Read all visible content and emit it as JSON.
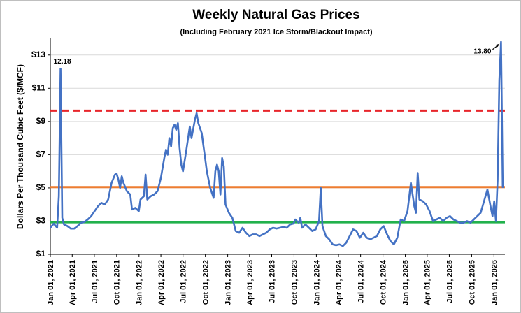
{
  "chart_data": {
    "type": "line",
    "title": "Weekly Natural Gas Prices",
    "subtitle": "(Including February  2021 Ice Storm/Blackout Impact)",
    "y_label": "Dollars Per Thousand Cubic Feet  ($/MCF)",
    "x": [
      "2021-01-01",
      "2021-01-15",
      "2021-01-29",
      "2021-02-05",
      "2021-02-12",
      "2021-02-19",
      "2021-02-26",
      "2021-03-12",
      "2021-03-26",
      "2021-04-09",
      "2021-04-23",
      "2021-05-07",
      "2021-05-21",
      "2021-06-04",
      "2021-06-18",
      "2021-07-02",
      "2021-07-16",
      "2021-07-30",
      "2021-08-13",
      "2021-08-27",
      "2021-09-10",
      "2021-09-24",
      "2021-10-01",
      "2021-10-08",
      "2021-10-15",
      "2021-10-22",
      "2021-10-29",
      "2021-11-12",
      "2021-11-26",
      "2021-12-03",
      "2021-12-17",
      "2021-12-31",
      "2022-01-07",
      "2022-01-21",
      "2022-01-28",
      "2022-02-04",
      "2022-02-18",
      "2022-03-04",
      "2022-03-18",
      "2022-04-01",
      "2022-04-15",
      "2022-04-22",
      "2022-04-29",
      "2022-05-06",
      "2022-05-13",
      "2022-05-20",
      "2022-05-27",
      "2022-06-03",
      "2022-06-10",
      "2022-06-17",
      "2022-06-24",
      "2022-07-01",
      "2022-07-15",
      "2022-07-29",
      "2022-08-05",
      "2022-08-19",
      "2022-08-26",
      "2022-09-02",
      "2022-09-16",
      "2022-09-30",
      "2022-10-07",
      "2022-10-21",
      "2022-11-04",
      "2022-11-11",
      "2022-11-18",
      "2022-11-25",
      "2022-12-02",
      "2022-12-09",
      "2022-12-16",
      "2022-12-23",
      "2023-01-06",
      "2023-01-20",
      "2023-02-03",
      "2023-02-17",
      "2023-03-03",
      "2023-03-17",
      "2023-03-31",
      "2023-04-14",
      "2023-04-28",
      "2023-05-12",
      "2023-05-26",
      "2023-06-09",
      "2023-06-23",
      "2023-07-07",
      "2023-07-21",
      "2023-08-04",
      "2023-08-18",
      "2023-09-01",
      "2023-09-15",
      "2023-09-29",
      "2023-10-06",
      "2023-10-20",
      "2023-10-27",
      "2023-11-03",
      "2023-11-17",
      "2023-12-01",
      "2023-12-15",
      "2023-12-29",
      "2024-01-12",
      "2024-01-19",
      "2024-01-26",
      "2024-02-09",
      "2024-02-23",
      "2024-03-08",
      "2024-03-22",
      "2024-04-05",
      "2024-04-19",
      "2024-05-03",
      "2024-05-17",
      "2024-05-31",
      "2024-06-14",
      "2024-06-28",
      "2024-07-12",
      "2024-07-26",
      "2024-08-09",
      "2024-08-23",
      "2024-09-06",
      "2024-09-20",
      "2024-10-04",
      "2024-10-18",
      "2024-11-01",
      "2024-11-15",
      "2024-11-29",
      "2024-12-13",
      "2024-12-27",
      "2025-01-10",
      "2025-01-24",
      "2025-02-07",
      "2025-02-14",
      "2025-02-21",
      "2025-02-28",
      "2025-03-14",
      "2025-03-28",
      "2025-04-11",
      "2025-04-25",
      "2025-05-09",
      "2025-05-23",
      "2025-06-06",
      "2025-06-20",
      "2025-07-04",
      "2025-07-18",
      "2025-08-01",
      "2025-08-15",
      "2025-08-29",
      "2025-09-12",
      "2025-09-26",
      "2025-10-10",
      "2025-10-24",
      "2025-11-07",
      "2025-11-21",
      "2025-12-05",
      "2025-12-19",
      "2025-12-26",
      "2026-01-02",
      "2026-01-09",
      "2026-01-16",
      "2026-01-23",
      "2026-01-30",
      "2026-02-06"
    ],
    "series": [
      {
        "color": "#4472c4",
        "values": [
          2.6,
          2.85,
          2.6,
          4.5,
          12.18,
          3.2,
          2.8,
          2.7,
          2.55,
          2.55,
          2.7,
          2.9,
          2.95,
          3.1,
          3.3,
          3.6,
          3.9,
          4.1,
          4.0,
          4.3,
          5.3,
          5.8,
          5.85,
          5.5,
          5.0,
          5.7,
          5.3,
          4.8,
          4.6,
          3.7,
          3.8,
          3.6,
          4.3,
          4.5,
          5.8,
          4.3,
          4.5,
          4.6,
          4.8,
          5.6,
          6.8,
          7.3,
          7.0,
          8.0,
          7.5,
          8.6,
          8.8,
          8.5,
          8.9,
          7.4,
          6.4,
          6.0,
          7.3,
          8.7,
          8.0,
          9.1,
          9.5,
          8.9,
          8.3,
          6.8,
          6.0,
          5.0,
          4.4,
          6.0,
          6.4,
          6.0,
          4.6,
          6.8,
          6.3,
          4.0,
          3.5,
          3.2,
          2.4,
          2.3,
          2.6,
          2.3,
          2.1,
          2.2,
          2.2,
          2.1,
          2.2,
          2.3,
          2.5,
          2.6,
          2.55,
          2.6,
          2.65,
          2.6,
          2.8,
          2.85,
          3.1,
          2.9,
          3.2,
          2.6,
          2.8,
          2.6,
          2.4,
          2.5,
          3.0,
          5.0,
          2.7,
          2.1,
          1.9,
          1.6,
          1.55,
          1.6,
          1.5,
          1.7,
          2.1,
          2.5,
          2.4,
          2.0,
          2.3,
          2.0,
          1.9,
          2.0,
          2.1,
          2.5,
          2.7,
          2.2,
          1.8,
          1.6,
          2.0,
          3.1,
          3.0,
          3.6,
          5.3,
          3.9,
          3.5,
          5.9,
          4.3,
          4.2,
          4.0,
          3.6,
          3.0,
          3.1,
          3.2,
          3.0,
          3.2,
          3.3,
          3.1,
          3.0,
          2.9,
          2.9,
          3.0,
          2.9,
          3.1,
          3.3,
          3.5,
          4.2,
          4.9,
          3.8,
          3.3,
          4.2,
          3.0,
          5.5,
          11.5,
          13.8,
          5.0
        ],
        "value_labels": [
          null,
          null,
          null,
          null,
          "12.18",
          null,
          null,
          null,
          null,
          null,
          null,
          null,
          null,
          null,
          null,
          null,
          null,
          null,
          null,
          null,
          null,
          null,
          null,
          null,
          null,
          null,
          null,
          null,
          null,
          null,
          null,
          null,
          null,
          null,
          null,
          null,
          null,
          null,
          null,
          null,
          null,
          null,
          null,
          null,
          null,
          null,
          null,
          null,
          null,
          null,
          null,
          null,
          null,
          null,
          null,
          null,
          null,
          null,
          null,
          null,
          null,
          null,
          null,
          null,
          null,
          null,
          null,
          null,
          null,
          null,
          null,
          null,
          null,
          null,
          null,
          null,
          null,
          null,
          null,
          null,
          null,
          null,
          null,
          null,
          null,
          null,
          null,
          null,
          null,
          null,
          null,
          null,
          null,
          null,
          null,
          null,
          null,
          null,
          null,
          null,
          null,
          null,
          null,
          null,
          null,
          null,
          null,
          null,
          null,
          null,
          null,
          null,
          null,
          null,
          null,
          null,
          null,
          null,
          null,
          null,
          null,
          null,
          null,
          null,
          null,
          null,
          null,
          null,
          null,
          null,
          null,
          null,
          null,
          null,
          null,
          null,
          null,
          null,
          null,
          null,
          null,
          null,
          null,
          null,
          null,
          null,
          null,
          null,
          null,
          null,
          null,
          null,
          null,
          null,
          null,
          null,
          null,
          "13.80",
          null
        ]
      }
    ],
    "reference_lines": [
      {
        "value": 9.65,
        "color": "#e8262b",
        "style": "dashed"
      },
      {
        "value": 5.05,
        "color": "#ed7d31",
        "style": "solid"
      },
      {
        "value": 2.93,
        "color": "#22b14c",
        "style": "solid"
      }
    ],
    "xlim": [
      "2021-01-01",
      "2026-02-15"
    ],
    "xticks": [
      {
        "value": "2021-01-01",
        "label": "Jan 01, 2021"
      },
      {
        "value": "2021-04-01",
        "label": "Apr 01, 2021"
      },
      {
        "value": "2021-07-01",
        "label": "Jul 01, 2021"
      },
      {
        "value": "2021-10-01",
        "label": "Oct 01, 2021"
      },
      {
        "value": "2022-01-01",
        "label": "Jan 01, 2022"
      },
      {
        "value": "2022-04-01",
        "label": "Apr 01, 2022"
      },
      {
        "value": "2022-07-01",
        "label": "Jul 01, 2022"
      },
      {
        "value": "2022-10-01",
        "label": "Oct 01, 2022"
      },
      {
        "value": "2023-01-01",
        "label": "Jan 01, 2023"
      },
      {
        "value": "2023-04-01",
        "label": "Apr 01, 2023"
      },
      {
        "value": "2023-07-01",
        "label": "Jul 01, 2023"
      },
      {
        "value": "2023-10-01",
        "label": "Oct 01, 2023"
      },
      {
        "value": "2024-01-01",
        "label": "Jan 01, 2024"
      },
      {
        "value": "2024-04-01",
        "label": "Apr 01, 2024"
      },
      {
        "value": "2024-07-01",
        "label": "Jul 01, 2024"
      },
      {
        "value": "2024-10-01",
        "label": "Oct 01, 2024"
      },
      {
        "value": "2025-01-01",
        "label": "Jan 01, 2025"
      },
      {
        "value": "2025-04-01",
        "label": "Apr 01, 2025"
      },
      {
        "value": "2025-07-01",
        "label": "Jul 01, 2025"
      },
      {
        "value": "2025-10-01",
        "label": "Oct 01, 2025"
      },
      {
        "value": "2026-01-01",
        "label": "Jan 01, 2026"
      }
    ],
    "ylim": [
      1,
      14
    ],
    "yticks": [
      {
        "value": 1,
        "label": "$1"
      },
      {
        "value": 3,
        "label": "$3"
      },
      {
        "value": 5,
        "label": "$5"
      },
      {
        "value": 7,
        "label": "$7"
      },
      {
        "value": 9,
        "label": "$9"
      },
      {
        "value": 11,
        "label": "$11"
      },
      {
        "value": 13,
        "label": "$13"
      }
    ],
    "grid": true
  }
}
